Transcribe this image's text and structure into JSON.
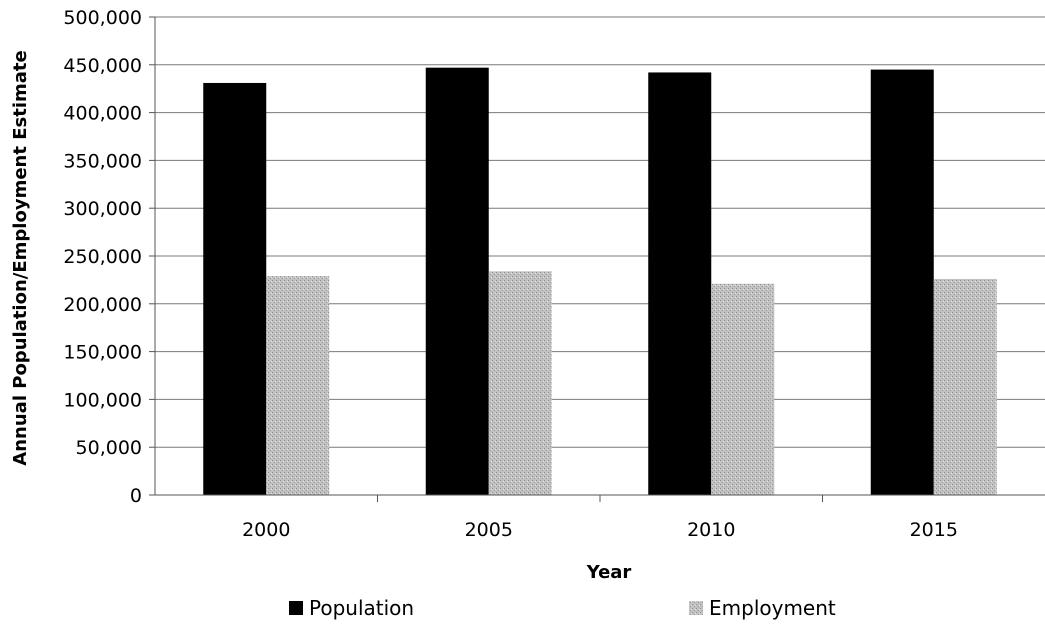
{
  "chart_data": {
    "type": "bar",
    "categories": [
      "2000",
      "2005",
      "2010",
      "2015"
    ],
    "series": [
      {
        "name": "Population",
        "values": [
          431000,
          447000,
          442000,
          445000
        ],
        "color": "#000000"
      },
      {
        "name": "Employment",
        "values": [
          229000,
          234000,
          221000,
          226000
        ],
        "color": "#b8b8b8"
      }
    ],
    "xlabel": "Year",
    "ylabel": "Annual Population/Employment Estimate",
    "ylim": [
      0,
      500000
    ],
    "yticks": [
      0,
      50000,
      100000,
      150000,
      200000,
      250000,
      300000,
      350000,
      400000,
      450000,
      500000
    ],
    "ytick_labels": [
      "0",
      "50,000",
      "100,000",
      "150,000",
      "200,000",
      "250,000",
      "300,000",
      "350,000",
      "400,000",
      "450,000",
      "500,000"
    ],
    "grid": true,
    "legend_position": "bottom"
  }
}
